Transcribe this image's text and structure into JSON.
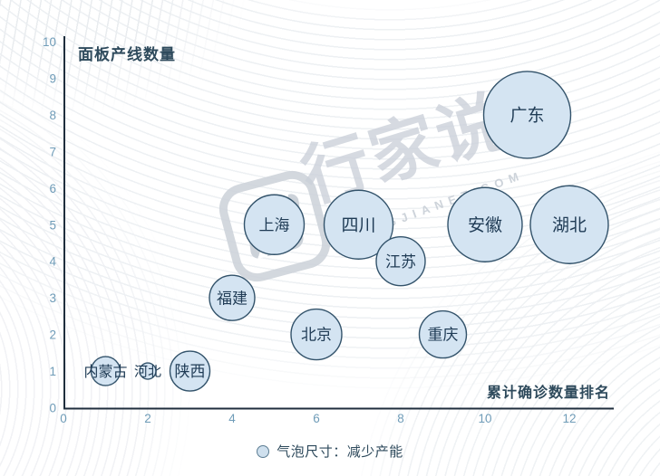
{
  "watermark": {
    "brand": "行家说",
    "domain": "HANGJIANET.COM"
  },
  "chart_data": {
    "type": "scatter",
    "subtype": "bubble",
    "title": "",
    "xlabel": "累计确诊数量排名",
    "ylabel": "面板产线数量",
    "xlim": [
      0,
      13
    ],
    "ylim": [
      0,
      10
    ],
    "x_ticks": [
      0,
      2,
      4,
      6,
      8,
      10,
      12
    ],
    "y_ticks": [
      0,
      1,
      2,
      3,
      4,
      5,
      6,
      7,
      8,
      9,
      10
    ],
    "grid": false,
    "legend_label": "气泡尺寸：减少产能",
    "legend_position": "bottom-center",
    "points": [
      {
        "label": "内蒙古",
        "x": 1,
        "y": 1,
        "r": 16
      },
      {
        "label": "河北",
        "x": 2,
        "y": 1,
        "r": 9
      },
      {
        "label": "陕西",
        "x": 3,
        "y": 1,
        "r": 22
      },
      {
        "label": "福建",
        "x": 4,
        "y": 3,
        "r": 25
      },
      {
        "label": "上海",
        "x": 5,
        "y": 5,
        "r": 33
      },
      {
        "label": "北京",
        "x": 6,
        "y": 2,
        "r": 28
      },
      {
        "label": "四川",
        "x": 7,
        "y": 5,
        "r": 38
      },
      {
        "label": "江苏",
        "x": 8,
        "y": 4,
        "r": 27
      },
      {
        "label": "重庆",
        "x": 9,
        "y": 2,
        "r": 26
      },
      {
        "label": "安徽",
        "x": 10,
        "y": 5,
        "r": 41
      },
      {
        "label": "广东",
        "x": 11,
        "y": 8,
        "r": 48
      },
      {
        "label": "湖北",
        "x": 12,
        "y": 5,
        "r": 43
      }
    ],
    "colors": {
      "bubble_fill": "#d4e4f2",
      "bubble_stroke": "#33536b",
      "bubble_text": "#1f3b55",
      "axis_line": "#1f2e3d",
      "tick_text": "#6f9cb8",
      "axis_title_text": "#2e4a5c"
    }
  }
}
